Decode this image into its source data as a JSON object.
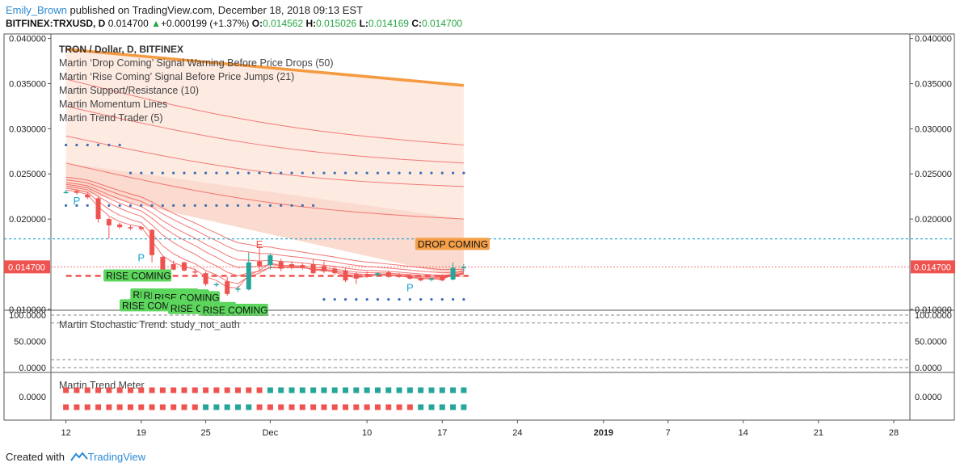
{
  "header": {
    "user": "Emily_Brown",
    "published": "published on TradingView.com, December 18, 2018 09:13 EST",
    "symbol": "BITFINEX:TRXUSD, D",
    "last": "0.014700",
    "change_arrow": "▲",
    "change": "+0.000199 (+1.37%)",
    "o_label": "O:",
    "o": "0.014562",
    "h_label": "H:",
    "h": "0.015026",
    "l_label": "L:",
    "l": "0.014169",
    "c_label": "C:",
    "c": "0.014700"
  },
  "footer": {
    "created": "Created with",
    "brand": "TradingView"
  },
  "colors": {
    "up": "#26a69a",
    "down": "#ef5350",
    "rise": "#5cd65c",
    "drop": "#f5a048",
    "ma_orange": "#f59a41",
    "dots": "#3d6fb5",
    "price_line": "#1aa4d4"
  },
  "chart_data": [
    {
      "type": "candlestick",
      "panel": "price",
      "title": "TRON / Dollar, D, BITFINEX",
      "legend": [
        "Martin ‘Drop Coming’ Signal Warning Before Price Drops (50)",
        "Martin ‘Rise Coming’ Signal Before Price Jumps (21)",
        "Martin Support/Resistance (10)",
        "Martin Momentum Lines",
        "Martin Trend Trader (5)"
      ],
      "y_ticks": [
        "0.040000",
        "0.035000",
        "0.030000",
        "0.025000",
        "0.020000",
        "0.010000"
      ],
      "ylim": [
        0.0099,
        0.0405
      ],
      "x_ticks": [
        {
          "label": "12",
          "day": 0
        },
        {
          "label": "19",
          "day": 7
        },
        {
          "label": "25",
          "day": 13
        },
        {
          "label": "Dec",
          "day": 19
        },
        {
          "label": "10",
          "day": 28
        },
        {
          "label": "17",
          "day": 35
        },
        {
          "label": "24",
          "day": 42
        },
        {
          "label": "2019",
          "day": 50
        },
        {
          "label": "7",
          "day": 56
        },
        {
          "label": "14",
          "day": 63
        },
        {
          "label": "21",
          "day": 70
        },
        {
          "label": "28",
          "day": 77
        }
      ],
      "xlim": [
        -1.4,
        78.5
      ],
      "last_price_label": "0.014700",
      "last_price": 0.0147,
      "candles": [
        {
          "o": 0.023,
          "h": 0.0232,
          "l": 0.0228,
          "c": 0.023
        },
        {
          "o": 0.0231,
          "h": 0.0233,
          "l": 0.0227,
          "c": 0.0229
        },
        {
          "o": 0.0227,
          "h": 0.023,
          "l": 0.0222,
          "c": 0.0224
        },
        {
          "o": 0.0223,
          "h": 0.0225,
          "l": 0.0196,
          "c": 0.02
        },
        {
          "o": 0.02,
          "h": 0.0202,
          "l": 0.0178,
          "c": 0.0193
        },
        {
          "o": 0.0194,
          "h": 0.0196,
          "l": 0.0189,
          "c": 0.0191
        },
        {
          "o": 0.0191,
          "h": 0.0193,
          "l": 0.0188,
          "c": 0.019
        },
        {
          "o": 0.0191,
          "h": 0.0192,
          "l": 0.0187,
          "c": 0.0189
        },
        {
          "o": 0.0188,
          "h": 0.0189,
          "l": 0.0152,
          "c": 0.016
        },
        {
          "o": 0.0158,
          "h": 0.0159,
          "l": 0.014,
          "c": 0.0143
        },
        {
          "o": 0.015,
          "h": 0.0154,
          "l": 0.0143,
          "c": 0.0144
        },
        {
          "o": 0.0152,
          "h": 0.0153,
          "l": 0.0142,
          "c": 0.0143
        },
        {
          "o": 0.0142,
          "h": 0.0145,
          "l": 0.0138,
          "c": 0.0141
        },
        {
          "o": 0.014,
          "h": 0.0142,
          "l": 0.0126,
          "c": 0.0128
        },
        {
          "o": 0.0128,
          "h": 0.013,
          "l": 0.0125,
          "c": 0.0128
        },
        {
          "o": 0.0131,
          "h": 0.0136,
          "l": 0.0115,
          "c": 0.0117
        },
        {
          "o": 0.0123,
          "h": 0.0126,
          "l": 0.0119,
          "c": 0.0123
        },
        {
          "o": 0.0122,
          "h": 0.0163,
          "l": 0.0121,
          "c": 0.0152
        },
        {
          "o": 0.0153,
          "h": 0.017,
          "l": 0.0143,
          "c": 0.0148
        },
        {
          "o": 0.0149,
          "h": 0.0162,
          "l": 0.0144,
          "c": 0.016
        },
        {
          "o": 0.0153,
          "h": 0.0156,
          "l": 0.0142,
          "c": 0.0145
        },
        {
          "o": 0.015,
          "h": 0.0153,
          "l": 0.0144,
          "c": 0.0147
        },
        {
          "o": 0.0149,
          "h": 0.0151,
          "l": 0.0144,
          "c": 0.0146
        },
        {
          "o": 0.015,
          "h": 0.0156,
          "l": 0.0139,
          "c": 0.014
        },
        {
          "o": 0.0148,
          "h": 0.0153,
          "l": 0.014,
          "c": 0.0142
        },
        {
          "o": 0.0145,
          "h": 0.0147,
          "l": 0.0138,
          "c": 0.014
        },
        {
          "o": 0.0143,
          "h": 0.0145,
          "l": 0.013,
          "c": 0.0132
        },
        {
          "o": 0.0139,
          "h": 0.0141,
          "l": 0.0128,
          "c": 0.0134
        },
        {
          "o": 0.0139,
          "h": 0.0142,
          "l": 0.0135,
          "c": 0.0137
        },
        {
          "o": 0.0138,
          "h": 0.0141,
          "l": 0.0136,
          "c": 0.014
        },
        {
          "o": 0.0141,
          "h": 0.0143,
          "l": 0.0135,
          "c": 0.0137
        },
        {
          "o": 0.0138,
          "h": 0.014,
          "l": 0.0135,
          "c": 0.0136
        },
        {
          "o": 0.0137,
          "h": 0.0139,
          "l": 0.0133,
          "c": 0.0134
        },
        {
          "o": 0.0135,
          "h": 0.0137,
          "l": 0.0131,
          "c": 0.0132
        },
        {
          "o": 0.0134,
          "h": 0.0135,
          "l": 0.0131,
          "c": 0.0134
        },
        {
          "o": 0.0138,
          "h": 0.0139,
          "l": 0.0131,
          "c": 0.0132
        },
        {
          "o": 0.0133,
          "h": 0.0152,
          "l": 0.0132,
          "c": 0.0146
        },
        {
          "o": 0.014562,
          "h": 0.015026,
          "l": 0.014169,
          "c": 0.0147
        }
      ],
      "signals": [
        {
          "label": "RISE COMING",
          "day": 6.5,
          "y": 0.0137
        },
        {
          "label": "RISE COMING",
          "day": 9,
          "y": 0.0116
        },
        {
          "label": "RISE COMING",
          "day": 10,
          "y": 0.0115
        },
        {
          "label": "RISE COMING",
          "day": 11,
          "y": 0.0113
        },
        {
          "label": "RISE COMING",
          "day": 8,
          "y": 0.0104
        },
        {
          "label": "RISE COMING",
          "day": 12.5,
          "y": 0.0101
        },
        {
          "label": "RISE COMING",
          "day": 15.5,
          "y": 0.0099
        },
        {
          "label": "DROP COMING",
          "day": 35.5,
          "y": 0.0172
        }
      ],
      "letters": [
        {
          "label": "P",
          "day": 1,
          "y": 0.0216
        },
        {
          "label": "P",
          "day": 7,
          "y": 0.0153
        },
        {
          "label": "E",
          "day": 18,
          "y": 0.0168
        },
        {
          "label": "P",
          "day": 32,
          "y": 0.012
        }
      ],
      "price_dotted_level": 0.0178,
      "support_dashed_level": 0.0137,
      "ma50": {
        "start": 0.0388,
        "end": 0.0348
      },
      "momentum_lines": [
        {
          "start": 0.0355,
          "end": 0.0282
        },
        {
          "start": 0.0325,
          "end": 0.0262
        },
        {
          "start": 0.0292,
          "end": 0.0236
        },
        {
          "start": 0.0262,
          "end": 0.02
        }
      ],
      "dotted_levels": [
        {
          "y": 0.0282,
          "from": 0,
          "to": 5
        },
        {
          "y": 0.0251,
          "from": 6,
          "to": 37
        },
        {
          "y": 0.0215,
          "from": 0,
          "to": 23
        },
        {
          "y": 0.0111,
          "from": 24,
          "to": 37
        }
      ]
    },
    {
      "type": "line",
      "panel": "stochastic",
      "title": "Martin Stochastic Trend: study_not_auth",
      "y_ticks": [
        "100.0000",
        "50.0000",
        "0.0000"
      ],
      "ylim": [
        0,
        100
      ],
      "levels": [
        100,
        85,
        15,
        0
      ]
    },
    {
      "type": "heatmap",
      "panel": "trend_meter",
      "title": "Martin Trend Meter",
      "y_ticks": [
        "0.0000"
      ],
      "row1": [
        "down",
        "down",
        "down",
        "down",
        "down",
        "down",
        "down",
        "down",
        "down",
        "down",
        "down",
        "down",
        "down",
        "down",
        "down",
        "down",
        "down",
        "down",
        "down",
        "up",
        "up",
        "up",
        "up",
        "up",
        "up",
        "up",
        "up",
        "up",
        "up",
        "up",
        "up",
        "up",
        "up",
        "up",
        "up",
        "up",
        "up",
        "up"
      ],
      "row2": [
        "down",
        "down",
        "down",
        "down",
        "down",
        "down",
        "down",
        "down",
        "down",
        "down",
        "down",
        "down",
        "down",
        "up",
        "up",
        "up",
        "up",
        "up",
        "down",
        "down",
        "down",
        "down",
        "down",
        "down",
        "down",
        "down",
        "down",
        "down",
        "down",
        "down",
        "down",
        "down",
        "down",
        "up",
        "up",
        "up",
        "up",
        "up"
      ]
    }
  ]
}
